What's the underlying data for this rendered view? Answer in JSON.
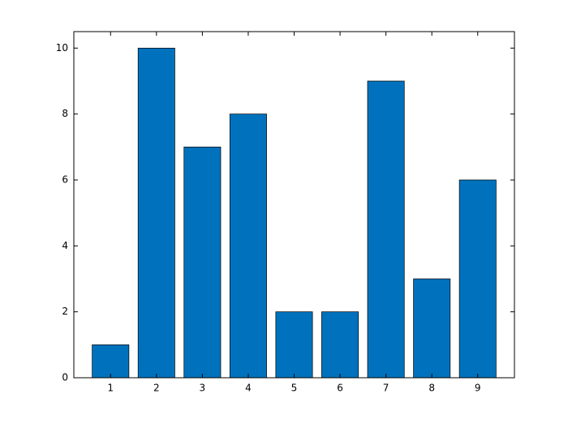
{
  "chart_data": {
    "type": "bar",
    "x": [
      1,
      2,
      3,
      4,
      5,
      6,
      7,
      8,
      9
    ],
    "values": [
      1,
      10,
      7,
      8,
      2,
      2,
      9,
      3,
      6
    ],
    "color": "#0072bd",
    "xlim": [
      0.2,
      9.8
    ],
    "xticks": [
      1,
      2,
      3,
      4,
      5,
      6,
      7,
      8,
      9
    ],
    "ylim": [
      0,
      10.5
    ],
    "yticks": [
      0,
      2,
      4,
      6,
      8,
      10
    ],
    "grid": false
  }
}
